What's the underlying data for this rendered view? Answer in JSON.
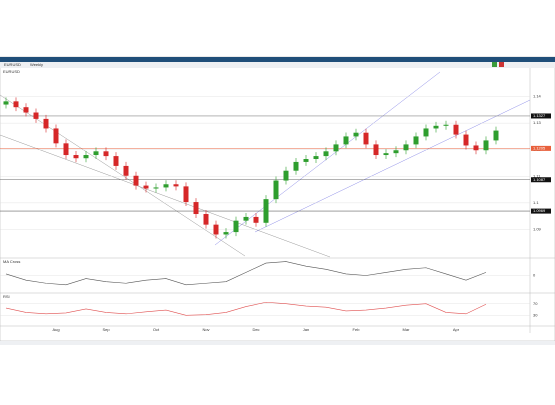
{
  "window": {
    "title": "EURUSD",
    "timeframe": "Weekly"
  },
  "chart_data": [
    {
      "type": "candlestick",
      "title": "EURUSD",
      "categories": [
        null,
        null,
        null,
        null,
        null,
        "Aug",
        null,
        null,
        null,
        null,
        "Sep",
        null,
        null,
        null,
        null,
        "Oct",
        null,
        null,
        null,
        null,
        "Nov",
        null,
        null,
        null,
        null,
        "Dec",
        null,
        null,
        null,
        null,
        "Jan",
        null,
        null,
        null,
        null,
        "Feb",
        null,
        null,
        null,
        null,
        "Mar",
        null,
        null,
        null,
        null,
        "Apr",
        null,
        null,
        null,
        null
      ],
      "open": [
        1.137,
        1.1382,
        1.136,
        1.134,
        1.1316,
        1.128,
        1.1224,
        1.118,
        1.1168,
        1.118,
        1.1194,
        1.1176,
        1.1139,
        1.1102,
        1.1065,
        1.1054,
        1.1058,
        1.107,
        1.1062,
        1.1003,
        1.0958,
        1.0918,
        1.0881,
        1.089,
        1.0933,
        1.0947,
        1.0925,
        1.1014,
        1.1084,
        1.1121,
        1.1154,
        1.1165,
        1.1176,
        1.1194,
        1.122,
        1.125,
        1.1264,
        1.122,
        1.118,
        1.1187,
        1.1198,
        1.122,
        1.125,
        1.128,
        1.129,
        1.1294,
        1.1257,
        1.1216,
        1.1198,
        1.1235
      ],
      "high": [
        1.1397,
        1.1397,
        1.1375,
        1.1355,
        1.1331,
        1.1295,
        1.1239,
        1.1195,
        1.1195,
        1.1209,
        1.1209,
        1.1191,
        1.1154,
        1.1117,
        1.108,
        1.1073,
        1.1085,
        1.1085,
        1.1077,
        1.1018,
        1.0973,
        1.0933,
        1.0905,
        1.0948,
        1.0962,
        1.0962,
        1.1029,
        1.1099,
        1.1136,
        1.1169,
        1.118,
        1.1191,
        1.1209,
        1.1235,
        1.1265,
        1.1279,
        1.1279,
        1.1235,
        1.1202,
        1.1213,
        1.1235,
        1.1265,
        1.1295,
        1.1305,
        1.1309,
        1.1309,
        1.1272,
        1.1231,
        1.125,
        1.1287
      ],
      "low": [
        1.1355,
        1.1345,
        1.1325,
        1.1301,
        1.1265,
        1.1209,
        1.1165,
        1.1153,
        1.1153,
        1.1165,
        1.1161,
        1.1124,
        1.1087,
        1.105,
        1.1039,
        1.1039,
        1.1043,
        1.1047,
        1.0988,
        1.0943,
        1.0903,
        1.0866,
        1.0866,
        1.0875,
        1.0918,
        1.091,
        1.091,
        1.0999,
        1.1069,
        1.1106,
        1.1139,
        1.115,
        1.1161,
        1.1179,
        1.1205,
        1.1235,
        1.1205,
        1.1165,
        1.1165,
        1.1172,
        1.1183,
        1.1205,
        1.1235,
        1.1265,
        1.1275,
        1.1242,
        1.1201,
        1.1183,
        1.1183,
        1.122
      ],
      "close": [
        1.1382,
        1.136,
        1.134,
        1.1316,
        1.128,
        1.1224,
        1.118,
        1.1168,
        1.118,
        1.1194,
        1.1176,
        1.1139,
        1.1102,
        1.1065,
        1.1054,
        1.1058,
        1.107,
        1.1062,
        1.1003,
        1.0958,
        1.0918,
        1.0881,
        1.089,
        1.0933,
        1.0947,
        1.0925,
        1.1014,
        1.1084,
        1.1121,
        1.1154,
        1.1165,
        1.1176,
        1.1194,
        1.122,
        1.125,
        1.1264,
        1.122,
        1.118,
        1.1187,
        1.1198,
        1.122,
        1.125,
        1.128,
        1.129,
        1.1294,
        1.1257,
        1.1216,
        1.1198,
        1.1235,
        1.1272
      ],
      "up_color": "#2e9e2e",
      "down_color": "#d62728",
      "ylim": [
        1.08,
        1.15
      ],
      "yticks": [
        1.09,
        1.1,
        1.11,
        1.12,
        1.13,
        1.14
      ],
      "levels": [
        {
          "value": 1.1327,
          "color": "#888888"
        },
        {
          "value": 1.1205,
          "color": "#e8603c"
        },
        {
          "value": 1.1087,
          "color": "#666666"
        },
        {
          "value": 1.0969,
          "color": "#666666"
        }
      ]
    },
    {
      "type": "line",
      "title": "MA Cross",
      "x": [
        0,
        2,
        4,
        6,
        8,
        10,
        12,
        14,
        16,
        18,
        20,
        22,
        24,
        26,
        28,
        30,
        32,
        34,
        36,
        38,
        40,
        42,
        44,
        46,
        48
      ],
      "values": [
        0.1,
        -0.3,
        -0.5,
        -0.6,
        -0.2,
        -0.4,
        -0.5,
        -0.3,
        -0.2,
        -0.6,
        -0.5,
        -0.4,
        0.2,
        0.8,
        0.9,
        0.6,
        0.4,
        0.1,
        0.0,
        0.2,
        0.4,
        0.5,
        0.1,
        -0.3,
        0.2
      ],
      "color": "#555555",
      "ylim": [
        -1,
        1
      ],
      "yticks": [
        0
      ]
    },
    {
      "type": "line",
      "title": "RSI",
      "x": [
        0,
        2,
        4,
        6,
        8,
        10,
        12,
        14,
        16,
        18,
        20,
        22,
        24,
        26,
        28,
        30,
        32,
        34,
        36,
        38,
        40,
        42,
        44,
        46,
        48
      ],
      "values": [
        55,
        40,
        35,
        38,
        52,
        40,
        35,
        42,
        48,
        30,
        32,
        40,
        60,
        75,
        70,
        62,
        58,
        45,
        48,
        55,
        65,
        70,
        40,
        35,
        68
      ],
      "color": "#e05050",
      "ylim": [
        0,
        100
      ],
      "yticks": [
        30,
        70
      ]
    }
  ]
}
